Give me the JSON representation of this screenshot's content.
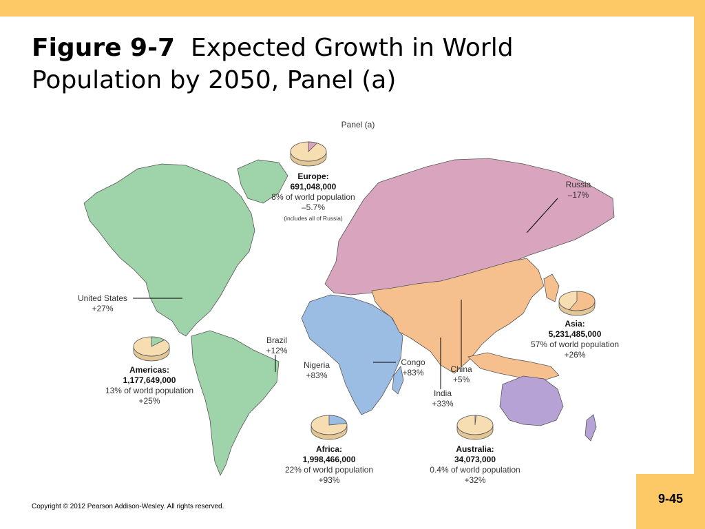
{
  "slide": {
    "title_bold": "Figure 9-7",
    "title_rest": "Expected Growth in World Population by 2050, Panel (a)",
    "copyright": "Copyright © 2012 Pearson Addison-Wesley. All rights reserved.",
    "page_number": "9-45"
  },
  "figure": {
    "panel_label": "Panel (a)",
    "regions": [
      {
        "name": "Europe:",
        "population": "691,048,000",
        "share_text": "8% of world population",
        "growth": "–5.7%",
        "note": "(includes all of Russia)",
        "share_value": 0.08,
        "color": "#D9A4BE"
      },
      {
        "name": "Americas:",
        "population": "1,177,649,000",
        "share_text": "13% of world population",
        "growth": "+25%",
        "share_value": 0.13,
        "color": "#9FD3A9"
      },
      {
        "name": "Asia:",
        "population": "5,231,485,000",
        "share_text": "57% of world population",
        "growth": "+26%",
        "share_value": 0.57,
        "color": "#F5BF8E"
      },
      {
        "name": "Africa:",
        "population": "1,998,466,000",
        "share_text": "22% of world population",
        "growth": "+93%",
        "share_value": 0.22,
        "color": "#9BBCE3"
      },
      {
        "name": "Australia:",
        "population": "34,073,000",
        "share_text": "0.4% of world population",
        "growth": "+32%",
        "share_value": 0.004,
        "color": "#B7A2D6"
      }
    ],
    "countries": [
      {
        "name": "Russia",
        "growth": "–17%"
      },
      {
        "name": "United States",
        "growth": "+27%"
      },
      {
        "name": "Brazil",
        "growth": "+12%"
      },
      {
        "name": "Nigeria",
        "growth": "+83%"
      },
      {
        "name": "Congo",
        "growth": "+83%"
      },
      {
        "name": "China",
        "growth": "+5%"
      },
      {
        "name": "India",
        "growth": "+33%"
      }
    ]
  }
}
